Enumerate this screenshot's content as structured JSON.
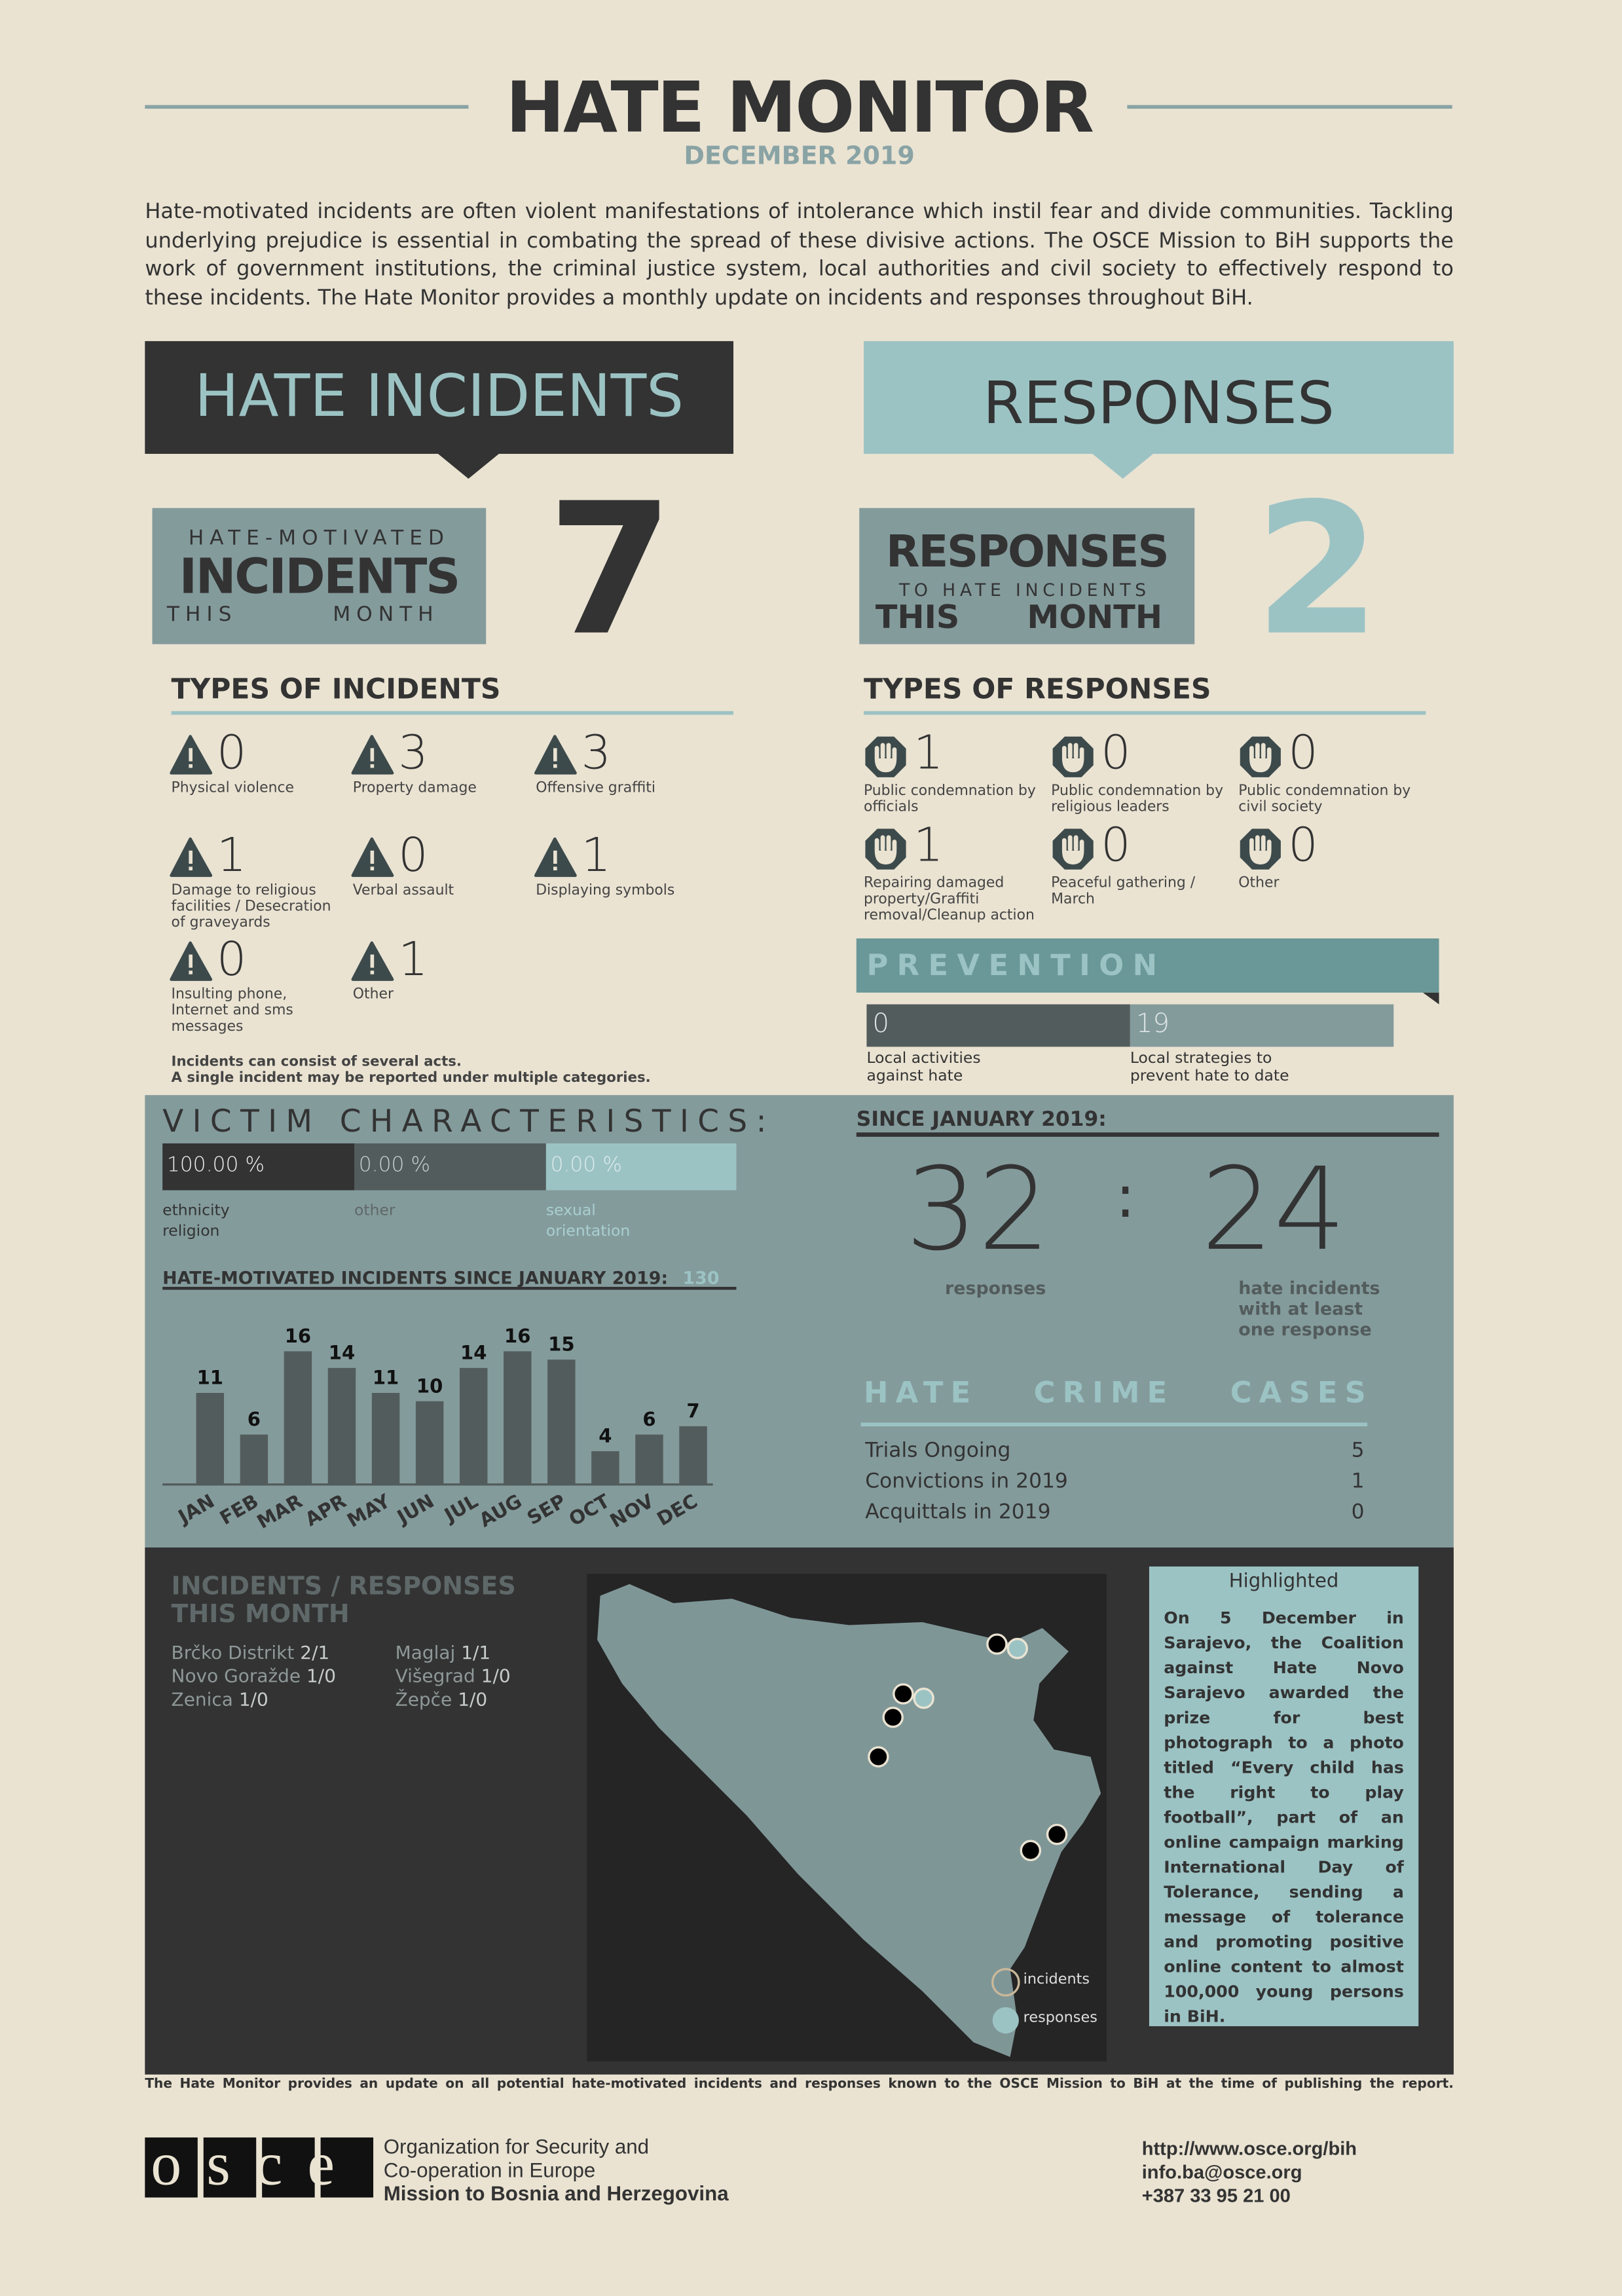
{
  "header": {
    "title": "HATE MONITOR",
    "date": "DECEMBER 2019",
    "intro": "Hate-motivated incidents are often violent manifestations of intolerance which instil fear and divide communities. Tackling underlying prejudice is essential in combating the spread of these divisive actions. The OSCE Mission to BiH supports the work of government institutions, the criminal justice system, local authorities and civil society to effectively respond to these incidents. The Hate Monitor provides a monthly update on incidents and responses throughout BiH."
  },
  "incidents": {
    "heading": "HATE INCIDENTS",
    "box_line1": "HATE-MOTIVATED",
    "box_line2": "INCIDENTS",
    "box_line3": "THIS MONTH",
    "count": 7,
    "types_title": "TYPES OF INCIDENTS",
    "types": [
      {
        "value": 0,
        "label": "Physical violence"
      },
      {
        "value": 3,
        "label": "Property damage"
      },
      {
        "value": 3,
        "label": "Offensive graffiti"
      },
      {
        "value": 1,
        "label": "Damage to religious facilities / Desecration of graveyards"
      },
      {
        "value": 0,
        "label": "Verbal assault"
      },
      {
        "value": 1,
        "label": "Displaying symbols"
      },
      {
        "value": 0,
        "label": "Insulting phone, Internet and sms messages"
      },
      {
        "value": 1,
        "label": "Other"
      }
    ],
    "note1": "Incidents can consist of several acts.",
    "note2": "A single incident may be reported under multiple categories."
  },
  "responses": {
    "heading": "RESPONSES",
    "box_line1": "RESPONSES",
    "box_line2": "TO HATE INCIDENTS",
    "box_line3": "THIS MONTH",
    "count": 2,
    "types_title": "TYPES OF RESPONSES",
    "types": [
      {
        "value": 1,
        "label": "Public condemnation by officials"
      },
      {
        "value": 0,
        "label": "Public condemnation by religious leaders"
      },
      {
        "value": 0,
        "label": "Public condemnation by civil society"
      },
      {
        "value": 1,
        "label": "Repairing damaged property/Graffiti removal/Cleanup action"
      },
      {
        "value": 0,
        "label": "Peaceful gathering / March"
      },
      {
        "value": 0,
        "label": "Other"
      }
    ]
  },
  "prevention": {
    "title": "PREVENTION",
    "items": [
      {
        "value": 0,
        "label": "Local activities against hate"
      },
      {
        "value": 19,
        "label": "Local strategies to prevent hate to date"
      }
    ]
  },
  "victims": {
    "title": "VICTIM CHARACTERISTICS:",
    "items": [
      {
        "value": "100.00 %",
        "label": "ethnicity religion"
      },
      {
        "value": "0.00 %",
        "label": "other"
      },
      {
        "value": "0.00 %",
        "label": "sexual orientation"
      }
    ]
  },
  "chart_data": {
    "type": "bar",
    "title": "HATE-MOTIVATED INCIDENTS SINCE JANUARY 2019:",
    "total": 130,
    "color": "#535c5c",
    "categories": [
      "JAN",
      "FEB",
      "MAR",
      "APR",
      "MAY",
      "JUN",
      "JUL",
      "AUG",
      "SEP",
      "OCT",
      "NOV",
      "DEC"
    ],
    "values": [
      11,
      6,
      16,
      14,
      11,
      10,
      14,
      16,
      15,
      4,
      6,
      7
    ]
  },
  "since": {
    "title": "SINCE JANUARY 2019:",
    "responses": 32,
    "responses_label": "responses",
    "incidents": 24,
    "incidents_label": "hate incidents with at least one response"
  },
  "cases": {
    "title": "HATE CRIME CASES",
    "rows": [
      {
        "label": "Trials Ongoing",
        "value": 5
      },
      {
        "label": "Convictions in 2019",
        "value": 1
      },
      {
        "label": "Acquittals in 2019",
        "value": 0
      }
    ]
  },
  "map": {
    "title": "INCIDENTS / RESPONSES THIS MONTH",
    "locations": [
      {
        "name": "Brčko Distrikt",
        "count": "2/1"
      },
      {
        "name": "Novo Goražde",
        "count": "1/0"
      },
      {
        "name": "Zenica",
        "count": "1/0"
      },
      {
        "name": "Maglaj",
        "count": "1/1"
      },
      {
        "name": "Višegrad",
        "count": "1/0"
      },
      {
        "name": "Žepče",
        "count": "1/0"
      }
    ],
    "legend_incidents": "incidents",
    "legend_responses": "responses"
  },
  "highlight": {
    "title": "Highlighted",
    "text": "On 5 December in Sarajevo, the Coalition against Hate Novo Sarajevo awarded the prize for best photograph to a photo titled “Every child has the right to play football”, part of an online campaign marking International Day of Tolerance, sending a message of tolerance and promoting positive online content to almost 100,000 young persons in BiH."
  },
  "footer": {
    "disclaimer": "The Hate Monitor provides an update on all potential hate-motivated incidents and responses known to the OSCE Mission to BiH at the time of publishing the report.",
    "logo": "osce",
    "org_line1": "Organization for Security and",
    "org_line2": "Co-operation in Europe",
    "org_line3": "Mission to Bosnia and Herzegovina",
    "url": "http://www.osce.org/bih",
    "email": "info.ba@osce.org",
    "phone": "+387 33 95 21 00"
  }
}
